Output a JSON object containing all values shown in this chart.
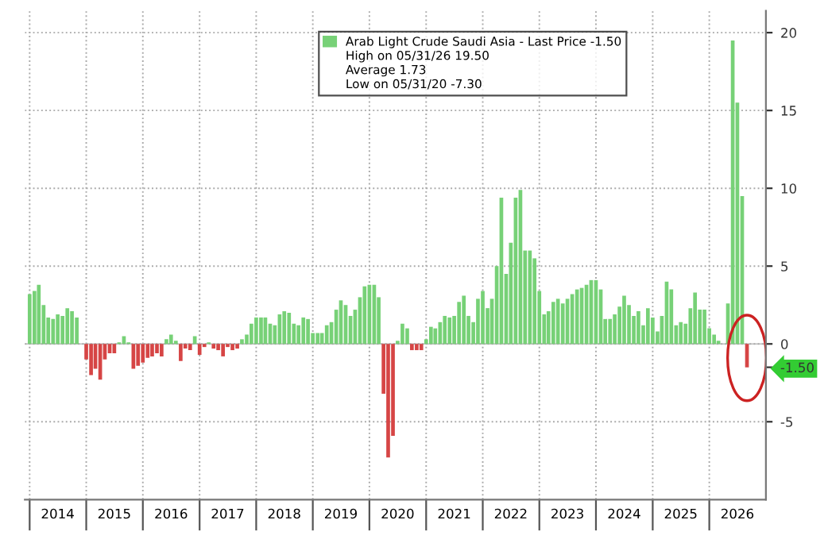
{
  "chart_data": {
    "type": "bar",
    "x": [
      "2014-01",
      "2014-02",
      "2014-03",
      "2014-04",
      "2014-05",
      "2014-06",
      "2014-07",
      "2014-08",
      "2014-09",
      "2014-10",
      "2014-11",
      "2014-12",
      "2015-01",
      "2015-02",
      "2015-03",
      "2015-04",
      "2015-05",
      "2015-06",
      "2015-07",
      "2015-08",
      "2015-09",
      "2015-10",
      "2015-11",
      "2015-12",
      "2016-01",
      "2016-02",
      "2016-03",
      "2016-04",
      "2016-05",
      "2016-06",
      "2016-07",
      "2016-08",
      "2016-09",
      "2016-10",
      "2016-11",
      "2016-12",
      "2017-01",
      "2017-02",
      "2017-03",
      "2017-04",
      "2017-05",
      "2017-06",
      "2017-07",
      "2017-08",
      "2017-09",
      "2017-10",
      "2017-11",
      "2017-12",
      "2018-01",
      "2018-02",
      "2018-03",
      "2018-04",
      "2018-05",
      "2018-06",
      "2018-07",
      "2018-08",
      "2018-09",
      "2018-10",
      "2018-11",
      "2018-12",
      "2019-01",
      "2019-02",
      "2019-03",
      "2019-04",
      "2019-05",
      "2019-06",
      "2019-07",
      "2019-08",
      "2019-09",
      "2019-10",
      "2019-11",
      "2019-12",
      "2020-01",
      "2020-02",
      "2020-03",
      "2020-04",
      "2020-05",
      "2020-06",
      "2020-07",
      "2020-08",
      "2020-09",
      "2020-10",
      "2020-11",
      "2020-12",
      "2021-01",
      "2021-02",
      "2021-03",
      "2021-04",
      "2021-05",
      "2021-06",
      "2021-07",
      "2021-08",
      "2021-09",
      "2021-10",
      "2021-11",
      "2021-12",
      "2022-01",
      "2022-02",
      "2022-03",
      "2022-04",
      "2022-05",
      "2022-06",
      "2022-07",
      "2022-08",
      "2022-09",
      "2022-10",
      "2022-11",
      "2022-12",
      "2023-01",
      "2023-02",
      "2023-03",
      "2023-04",
      "2023-05",
      "2023-06",
      "2023-07",
      "2023-08",
      "2023-09",
      "2023-10",
      "2023-11",
      "2023-12",
      "2024-01",
      "2024-02",
      "2024-03",
      "2024-04",
      "2024-05",
      "2024-06",
      "2024-07",
      "2024-08",
      "2024-09",
      "2024-10",
      "2024-11",
      "2024-12",
      "2025-01",
      "2025-02",
      "2025-03",
      "2025-04",
      "2025-05",
      "2025-06",
      "2025-07",
      "2025-08",
      "2025-09",
      "2025-10",
      "2025-11",
      "2025-12",
      "2026-01",
      "2026-02",
      "2026-03",
      "2026-04",
      "2026-05",
      "2026-06",
      "2026-07",
      "2026-08",
      "2026-09"
    ],
    "series": [
      {
        "name": "Arab Light Crude Saudi Asia - Last Price -1.50",
        "values": [
          3.2,
          3.4,
          3.8,
          2.5,
          1.7,
          1.6,
          1.9,
          1.8,
          2.3,
          2.1,
          1.7,
          0,
          -1.0,
          -2.0,
          -1.6,
          -2.3,
          -1.0,
          -0.6,
          -0.6,
          0.1,
          0.5,
          0.1,
          -1.6,
          -1.4,
          -1.2,
          -0.9,
          -0.8,
          -0.6,
          -0.8,
          0.3,
          0.6,
          0.2,
          -1.1,
          -0.3,
          -0.4,
          0.5,
          -0.7,
          -0.2,
          0.1,
          -0.3,
          -0.4,
          -0.8,
          -0.2,
          -0.4,
          -0.3,
          0.3,
          0.6,
          1.3,
          1.7,
          1.7,
          1.7,
          1.3,
          1.2,
          1.9,
          2.1,
          2.0,
          1.3,
          1.2,
          1.7,
          1.6,
          0.7,
          0.7,
          0.7,
          1.2,
          1.4,
          2.2,
          2.8,
          2.5,
          1.8,
          2.2,
          3.0,
          3.7,
          3.8,
          3.8,
          3.0,
          -3.2,
          -7.3,
          -5.9,
          0.2,
          1.3,
          1.0,
          -0.4,
          -0.4,
          -0.4,
          0.3,
          1.1,
          1.0,
          1.4,
          1.8,
          1.7,
          1.8,
          2.7,
          3.1,
          1.8,
          1.4,
          2.9,
          3.4,
          2.3,
          2.9,
          5.0,
          9.4,
          4.5,
          6.5,
          9.4,
          9.9,
          6.0,
          6.0,
          5.5,
          3.4,
          1.9,
          2.1,
          2.7,
          2.9,
          2.6,
          2.9,
          3.2,
          3.5,
          3.6,
          3.8,
          4.1,
          4.1,
          3.5,
          1.6,
          1.6,
          1.9,
          2.4,
          3.1,
          2.5,
          1.8,
          2.1,
          1.2,
          2.3,
          1.7,
          0.8,
          1.8,
          4.0,
          3.5,
          1.2,
          1.4,
          1.3,
          2.3,
          3.3,
          2.2,
          2.2,
          1.0,
          0.6,
          0.2,
          0,
          2.6,
          19.5,
          15.5,
          9.5,
          -1.5
        ],
        "colors": [
          "#77d177",
          "#77d177",
          "#77d177",
          "#77d177",
          "#77d177",
          "#77d177",
          "#77d177",
          "#77d177",
          "#77d177",
          "#77d177",
          "#77d177",
          "#77d177",
          "#d64545",
          "#d64545",
          "#d64545",
          "#d64545",
          "#d64545",
          "#d64545",
          "#d64545",
          "#77d177",
          "#77d177",
          "#77d177",
          "#d64545",
          "#d64545",
          "#d64545",
          "#d64545",
          "#d64545",
          "#d64545",
          "#d64545",
          "#77d177",
          "#77d177",
          "#77d177",
          "#d64545",
          "#d64545",
          "#d64545",
          "#77d177",
          "#d64545",
          "#d64545",
          "#77d177",
          "#d64545",
          "#d64545",
          "#d64545",
          "#d64545",
          "#d64545",
          "#d64545",
          "#77d177",
          "#77d177",
          "#77d177",
          "#77d177",
          "#77d177",
          "#77d177",
          "#77d177",
          "#77d177",
          "#77d177",
          "#77d177",
          "#77d177",
          "#77d177",
          "#77d177",
          "#77d177",
          "#77d177",
          "#77d177",
          "#77d177",
          "#77d177",
          "#77d177",
          "#77d177",
          "#77d177",
          "#77d177",
          "#77d177",
          "#77d177",
          "#77d177",
          "#77d177",
          "#77d177",
          "#77d177",
          "#77d177",
          "#77d177",
          "#d64545",
          "#d64545",
          "#d64545",
          "#77d177",
          "#77d177",
          "#77d177",
          "#d64545",
          "#d64545",
          "#d64545",
          "#77d177",
          "#77d177",
          "#77d177",
          "#77d177",
          "#77d177",
          "#77d177",
          "#77d177",
          "#77d177",
          "#77d177",
          "#77d177",
          "#77d177",
          "#77d177",
          "#77d177",
          "#77d177",
          "#77d177",
          "#77d177",
          "#77d177",
          "#77d177",
          "#77d177",
          "#77d177",
          "#77d177",
          "#77d177",
          "#77d177",
          "#77d177",
          "#77d177",
          "#77d177",
          "#77d177",
          "#77d177",
          "#77d177",
          "#77d177",
          "#77d177",
          "#77d177",
          "#77d177",
          "#77d177",
          "#77d177",
          "#77d177",
          "#77d177",
          "#77d177",
          "#77d177",
          "#77d177",
          "#77d177",
          "#77d177",
          "#77d177",
          "#77d177",
          "#77d177",
          "#77d177",
          "#77d177",
          "#77d177",
          "#77d177",
          "#77d177",
          "#77d177",
          "#77d177",
          "#77d177",
          "#77d177",
          "#77d177",
          "#77d177",
          "#77d177",
          "#77d177",
          "#77d177",
          "#77d177",
          "#77d177",
          "#77d177",
          "#77d177",
          "#77d177",
          "#77d177",
          "#77d177",
          "#77d177",
          "#77d177",
          "#d64545"
        ]
      }
    ],
    "xlim": [
      "2013-12",
      "2027-01"
    ],
    "xticks": [
      {
        "value": "2014-01",
        "label": null
      },
      {
        "value": "2014-07",
        "label": "2014"
      },
      {
        "value": "2015-01",
        "label": null
      },
      {
        "value": "2015-07",
        "label": "2015"
      },
      {
        "value": "2016-01",
        "label": null
      },
      {
        "value": "2016-07",
        "label": "2016"
      },
      {
        "value": "2017-01",
        "label": null
      },
      {
        "value": "2017-07",
        "label": "2017"
      },
      {
        "value": "2018-01",
        "label": null
      },
      {
        "value": "2018-07",
        "label": "2018"
      },
      {
        "value": "2019-01",
        "label": null
      },
      {
        "value": "2019-07",
        "label": "2019"
      },
      {
        "value": "2020-01",
        "label": null
      },
      {
        "value": "2020-07",
        "label": "2020"
      },
      {
        "value": "2021-01",
        "label": null
      },
      {
        "value": "2021-07",
        "label": "2021"
      },
      {
        "value": "2022-01",
        "label": null
      },
      {
        "value": "2022-07",
        "label": "2022"
      },
      {
        "value": "2023-01",
        "label": null
      },
      {
        "value": "2023-07",
        "label": "2023"
      },
      {
        "value": "2024-01",
        "label": null
      },
      {
        "value": "2024-07",
        "label": "2024"
      },
      {
        "value": "2025-01",
        "label": null
      },
      {
        "value": "2025-07",
        "label": "2025"
      },
      {
        "value": "2026-01",
        "label": null
      },
      {
        "value": "2026-07",
        "label": "2026"
      }
    ],
    "ylim": [
      -10,
      21.4
    ],
    "yticks": [
      -5,
      {
        "value": -1.5,
        "label": "-1.50"
      },
      0,
      5,
      10,
      15,
      20
    ],
    "grid": true,
    "legend": "top right",
    "annotations": [
      "High on 05/31/26 19.50",
      "Average 1.73",
      "Low on 05/31/20 -7.30"
    ]
  }
}
